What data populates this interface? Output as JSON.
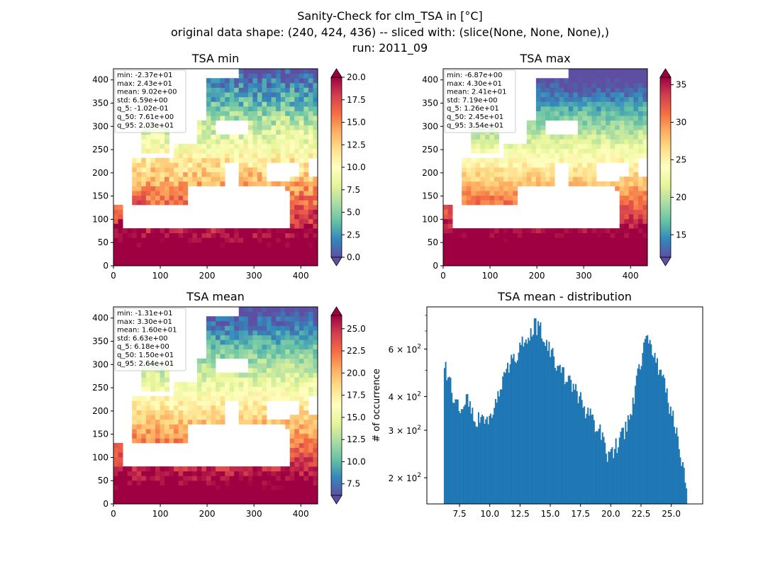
{
  "suptitle": {
    "line1": "Sanity-Check for clm_TSA in [°C]",
    "line2": "original data shape: (240, 424, 436) -- sliced with: (slice(None, None, None),)",
    "line3": "run: 2011_09"
  },
  "chart_data": [
    {
      "type": "heatmap",
      "title": "TSA min",
      "colormap": "Spectral_r",
      "x_ticks": [
        "0",
        "100",
        "200",
        "300",
        "400"
      ],
      "y_ticks": [
        "0",
        "50",
        "100",
        "150",
        "200",
        "250",
        "300",
        "350",
        "400"
      ],
      "xlim": [
        0,
        436
      ],
      "ylim": [
        0,
        424
      ],
      "colorbar": {
        "range": [
          0,
          20
        ],
        "extend": "both",
        "ticks": [
          "0.0",
          "2.5",
          "5.0",
          "7.5",
          "10.0",
          "12.5",
          "15.0",
          "17.5",
          "20.0"
        ]
      },
      "stats": [
        "min: -2.37e+01",
        "max: 2.43e+01",
        "mean: 9.02e+00",
        "std: 6.59e+00",
        "q_5: -1.02e-01",
        "q_50: 7.61e+00",
        "q_95: 2.03e+01"
      ]
    },
    {
      "type": "heatmap",
      "title": "TSA max",
      "colormap": "Spectral_r",
      "x_ticks": [
        "0",
        "100",
        "200",
        "300",
        "400"
      ],
      "y_ticks": [
        "0",
        "50",
        "100",
        "150",
        "200",
        "250",
        "300",
        "350",
        "400"
      ],
      "xlim": [
        0,
        436
      ],
      "ylim": [
        0,
        424
      ],
      "colorbar": {
        "range": [
          12,
          36
        ],
        "extend": "both",
        "ticks": [
          "15",
          "20",
          "25",
          "30",
          "35"
        ]
      },
      "stats": [
        "min: -6.87e+00",
        "max: 4.30e+01",
        "mean: 2.41e+01",
        "std: 7.19e+00",
        "q_5: 1.26e+01",
        "q_50: 2.45e+01",
        "q_95: 3.54e+01"
      ]
    },
    {
      "type": "heatmap",
      "title": "TSA mean",
      "colormap": "Spectral_r",
      "x_ticks": [
        "0",
        "100",
        "200",
        "300",
        "400"
      ],
      "y_ticks": [
        "0",
        "50",
        "100",
        "150",
        "200",
        "250",
        "300",
        "350",
        "400"
      ],
      "xlim": [
        0,
        436
      ],
      "ylim": [
        0,
        424
      ],
      "colorbar": {
        "range": [
          6.2,
          26.5
        ],
        "extend": "both",
        "ticks": [
          "7.5",
          "10.0",
          "12.5",
          "15.0",
          "17.5",
          "20.0",
          "22.5",
          "25.0"
        ]
      },
      "stats": [
        "min: -1.31e+01",
        "max: 3.30e+01",
        "mean: 1.60e+01",
        "std: 6.63e+00",
        "q_5: 6.18e+00",
        "q_50: 1.50e+01",
        "q_95: 2.64e+01"
      ]
    },
    {
      "type": "bar",
      "title": "TSA mean - distribution",
      "ylabel": "# of occurrence",
      "yscale": "log",
      "xlim": [
        4.8,
        27.6
      ],
      "ylim": [
        160,
        860
      ],
      "x_ticks": [
        "7.5",
        "10.0",
        "12.5",
        "15.0",
        "17.5",
        "20.0",
        "22.5",
        "25.0"
      ],
      "y_ticks": [
        {
          "value": 200,
          "base": "2",
          "exp": "10",
          "pow": "2"
        },
        {
          "value": 300,
          "base": "3",
          "exp": "10",
          "pow": "2"
        },
        {
          "value": 400,
          "base": "4",
          "exp": "10",
          "pow": "2"
        },
        {
          "value": 600,
          "base": "6",
          "exp": "10",
          "pow": "2"
        }
      ],
      "bins": {
        "start": 6.2,
        "end": 26.3
      },
      "anchors": [
        [
          6.2,
          510
        ],
        [
          6.6,
          490
        ],
        [
          7.0,
          400
        ],
        [
          7.4,
          380
        ],
        [
          7.8,
          340
        ],
        [
          8.2,
          410
        ],
        [
          8.6,
          330
        ],
        [
          9.0,
          320
        ],
        [
          9.4,
          350
        ],
        [
          9.8,
          320
        ],
        [
          10.2,
          360
        ],
        [
          10.8,
          420
        ],
        [
          11.4,
          500
        ],
        [
          12.0,
          560
        ],
        [
          12.6,
          620
        ],
        [
          13.2,
          690
        ],
        [
          13.7,
          740
        ],
        [
          14.2,
          700
        ],
        [
          14.7,
          620
        ],
        [
          15.2,
          560
        ],
        [
          15.8,
          500
        ],
        [
          16.4,
          460
        ],
        [
          17.0,
          420
        ],
        [
          17.6,
          380
        ],
        [
          18.2,
          340
        ],
        [
          18.8,
          310
        ],
        [
          19.4,
          280
        ],
        [
          19.8,
          240
        ],
        [
          20.2,
          250
        ],
        [
          20.6,
          270
        ],
        [
          21.0,
          290
        ],
        [
          21.5,
          330
        ],
        [
          22.0,
          420
        ],
        [
          22.5,
          550
        ],
        [
          22.9,
          640
        ],
        [
          23.2,
          650
        ],
        [
          23.6,
          580
        ],
        [
          24.2,
          470
        ],
        [
          24.8,
          380
        ],
        [
          25.4,
          300
        ],
        [
          25.8,
          240
        ],
        [
          26.1,
          210
        ],
        [
          26.3,
          175
        ]
      ]
    }
  ]
}
